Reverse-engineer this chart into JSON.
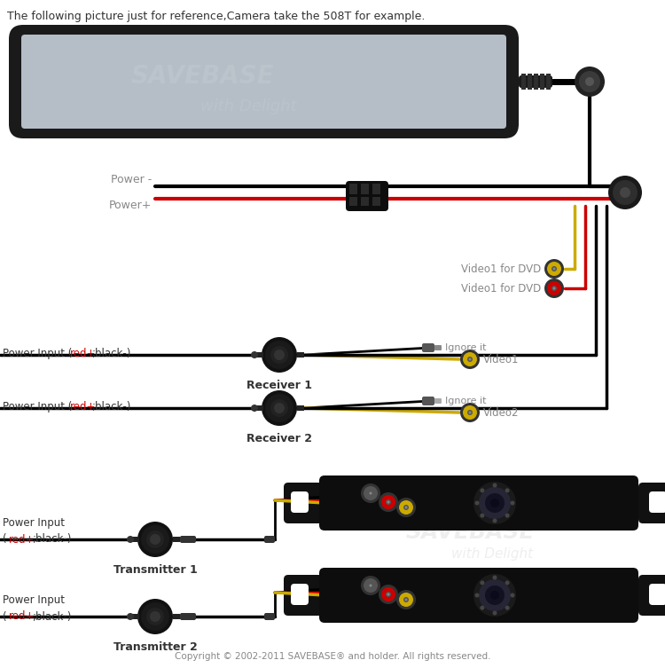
{
  "title": "The following picture just for reference,Camera take the 508T for example.",
  "copyright": "Copyright © 2002-2011 SAVEBASE® and holder. All rights reserved.",
  "bg_color": "#ffffff",
  "labels": {
    "power_minus": "Power -",
    "power_plus": "Power+",
    "video1_dvd1": "Video1 for DVD",
    "video1_dvd2": "Video1 for DVD",
    "ignore1": "Ignore it",
    "video1": "Video1",
    "ignore2": "Ignore it",
    "video2": "Video2",
    "receiver1": "Receiver 1",
    "receiver2": "Receiver 2",
    "transmitter1": "Transmitter 1",
    "transmitter2": "Transmitter 2",
    "power_input1a": "Power Input (",
    "power_input1b": "red+",
    "power_input1c": ";black-)",
    "power_input2a": "Power Input (",
    "power_input2b": "red+",
    "power_input2c": ";black-)",
    "power_input3a": "Power Input",
    "power_input3b": "red+",
    "power_input3c": ";black-)",
    "power_input4a": "Power Input",
    "power_input4b": "red+",
    "power_input4c": ";black-)",
    "savebase_watermark": "SAVEBASE",
    "delight_watermark": "with Delight"
  },
  "colors": {
    "black": "#000000",
    "red": "#cc0000",
    "yellow": "#ccaa00",
    "white": "#ffffff",
    "gray": "#888888",
    "dark_gray": "#222222",
    "light_gray": "#aaaaaa",
    "connector_gray": "#555555",
    "label_gray": "#888888",
    "red_label": "#cc0000",
    "mirror_frame": "#1a1a1a",
    "mirror_screen": "#b5bec7",
    "device_body": "#111111"
  }
}
